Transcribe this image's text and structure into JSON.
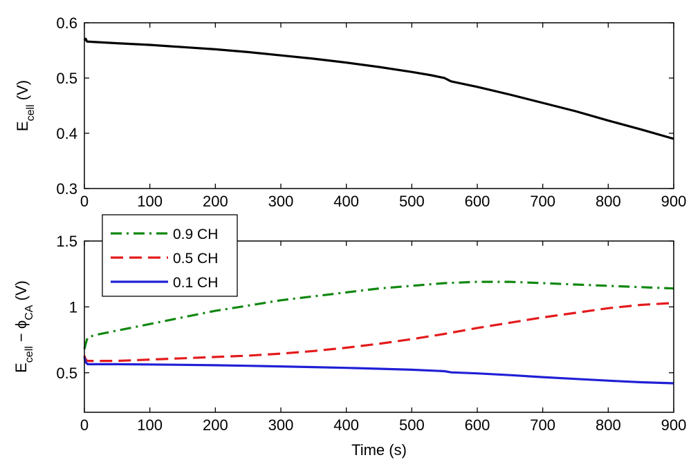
{
  "chart_data": [
    {
      "type": "line",
      "ylabel_main": "E",
      "ylabel_sub": "cell",
      "ylabel_unit": " (V)",
      "xlabel": "",
      "xlim": [
        0,
        900
      ],
      "ylim": [
        0.3,
        0.6
      ],
      "xticks": [
        0,
        100,
        200,
        300,
        400,
        500,
        600,
        700,
        800,
        900
      ],
      "xtick_labels": [
        "0",
        "100",
        "200",
        "300",
        "400",
        "500",
        "600",
        "700",
        "800",
        "900"
      ],
      "yticks": [
        0.3,
        0.4,
        0.5,
        0.6
      ],
      "ytick_labels": [
        "0.3",
        "0.4",
        "0.5",
        "0.6"
      ],
      "grid": false,
      "series": [
        {
          "color": "#000000",
          "dash": "solid",
          "x": [
            0,
            2,
            4,
            5,
            50,
            100,
            150,
            200,
            250,
            300,
            350,
            400,
            450,
            500,
            530,
            550,
            555,
            560,
            600,
            650,
            700,
            750,
            800,
            850,
            900
          ],
          "y": [
            0.568,
            0.571,
            0.566,
            0.566,
            0.563,
            0.56,
            0.556,
            0.552,
            0.547,
            0.541,
            0.535,
            0.528,
            0.52,
            0.511,
            0.505,
            0.5,
            0.497,
            0.494,
            0.484,
            0.47,
            0.455,
            0.44,
            0.423,
            0.407,
            0.39
          ]
        }
      ]
    },
    {
      "type": "line",
      "ylabel_main": "E",
      "ylabel_sub": "cell",
      "ylabel_mid": " − ",
      "ylabel_main2": "ϕ",
      "ylabel_sub2": "CA",
      "ylabel_unit": " (V)",
      "xlabel": "Time (s)",
      "xlim": [
        0,
        900
      ],
      "ylim": [
        0.2,
        1.5
      ],
      "xticks": [
        0,
        100,
        200,
        300,
        400,
        500,
        600,
        700,
        800,
        900
      ],
      "xtick_labels": [
        "0",
        "100",
        "200",
        "300",
        "400",
        "500",
        "600",
        "700",
        "800",
        "900"
      ],
      "yticks": [
        0.5,
        1,
        1.5
      ],
      "ytick_labels": [
        "0.5",
        "1",
        "1.5"
      ],
      "grid": false,
      "legend": "top-left",
      "series": [
        {
          "name": "0.9 CH",
          "color": "#118811",
          "dash": "dashdot",
          "x": [
            0,
            2,
            5,
            20,
            50,
            100,
            150,
            200,
            250,
            300,
            350,
            400,
            450,
            500,
            550,
            600,
            650,
            700,
            750,
            800,
            850,
            900
          ],
          "y": [
            0.68,
            0.72,
            0.77,
            0.79,
            0.82,
            0.87,
            0.92,
            0.97,
            1.01,
            1.05,
            1.08,
            1.11,
            1.14,
            1.16,
            1.18,
            1.19,
            1.19,
            1.18,
            1.17,
            1.16,
            1.15,
            1.14
          ]
        },
        {
          "name": "0.5 CH",
          "color": "#e41a1c",
          "dash": "dashed",
          "x": [
            0,
            2,
            5,
            20,
            50,
            100,
            150,
            200,
            250,
            300,
            350,
            400,
            450,
            500,
            550,
            600,
            650,
            700,
            750,
            800,
            850,
            900
          ],
          "y": [
            0.63,
            0.6,
            0.59,
            0.59,
            0.59,
            0.6,
            0.61,
            0.62,
            0.63,
            0.645,
            0.665,
            0.69,
            0.72,
            0.755,
            0.795,
            0.84,
            0.88,
            0.92,
            0.955,
            0.99,
            1.015,
            1.03
          ]
        },
        {
          "name": "0.1 CH",
          "color": "#1f1fd6",
          "dash": "solid",
          "x": [
            0,
            2,
            5,
            50,
            100,
            150,
            200,
            250,
            300,
            350,
            400,
            450,
            500,
            550,
            560,
            600,
            650,
            700,
            750,
            800,
            850,
            900
          ],
          "y": [
            0.62,
            0.58,
            0.565,
            0.565,
            0.563,
            0.56,
            0.557,
            0.553,
            0.548,
            0.543,
            0.537,
            0.53,
            0.523,
            0.512,
            0.503,
            0.495,
            0.482,
            0.467,
            0.453,
            0.44,
            0.428,
            0.42
          ]
        }
      ]
    }
  ]
}
